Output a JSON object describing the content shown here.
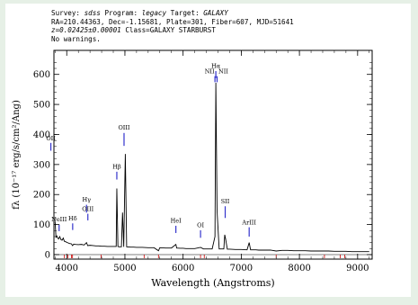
{
  "header": {
    "line1": {
      "survey_label": "Survey:",
      "survey": "sdss",
      "program_label": "Program:",
      "program": "legacy",
      "target_label": "Target:",
      "target": "GALAXY"
    },
    "line2": "RA=210.44363, Dec=-1.15681, Plate=301, Fiber=607, MJD=51641",
    "line3": {
      "redshift": "z=0.02425±0.00001",
      "class": "Class=GALAXY STARBURST"
    },
    "line4": "No warnings."
  },
  "colors": {
    "frame_background": "#e6f0e6",
    "panel_background": "#ffffff",
    "spectrum": "#000000",
    "line_marker": "#3333cc",
    "sky_tick": "#cc0000"
  },
  "chart_data": {
    "type": "line",
    "xlabel": "Wavelength (Angstroms)",
    "ylabel": "fλ (10⁻¹⁷ erg/s/cm²/Ang)",
    "xlim": [
      3780,
      9250
    ],
    "ylim": [
      -15,
      680
    ],
    "xticks": [
      4000,
      5000,
      6000,
      7000,
      8000,
      9000
    ],
    "yticks": [
      0,
      100,
      200,
      300,
      400,
      500,
      600
    ],
    "grid": false,
    "series": [
      {
        "points": [
          [
            3800,
            110
          ],
          [
            3815,
            58
          ],
          [
            3830,
            62
          ],
          [
            3845,
            55
          ],
          [
            3860,
            52
          ],
          [
            3880,
            60
          ],
          [
            3900,
            50
          ],
          [
            3920,
            48
          ],
          [
            3940,
            55
          ],
          [
            3960,
            44
          ],
          [
            3990,
            42
          ],
          [
            4010,
            40
          ],
          [
            4050,
            37
          ],
          [
            4080,
            36
          ],
          [
            4100,
            30
          ],
          [
            4120,
            35
          ],
          [
            4150,
            34
          ],
          [
            4200,
            33
          ],
          [
            4250,
            34
          ],
          [
            4300,
            32
          ],
          [
            4340,
            40
          ],
          [
            4360,
            30
          ],
          [
            4400,
            31
          ],
          [
            4450,
            30
          ],
          [
            4500,
            29
          ],
          [
            4550,
            29
          ],
          [
            4600,
            28
          ],
          [
            4650,
            28
          ],
          [
            4700,
            27
          ],
          [
            4750,
            27
          ],
          [
            4800,
            27
          ],
          [
            4850,
            27
          ],
          [
            4861,
            220
          ],
          [
            4880,
            27
          ],
          [
            4900,
            26
          ],
          [
            4940,
            26
          ],
          [
            4959,
            140
          ],
          [
            4980,
            26
          ],
          [
            5007,
            335
          ],
          [
            5030,
            26
          ],
          [
            5100,
            25
          ],
          [
            5150,
            25
          ],
          [
            5200,
            24
          ],
          [
            5300,
            24
          ],
          [
            5400,
            23
          ],
          [
            5500,
            23
          ],
          [
            5577,
            13
          ],
          [
            5600,
            23
          ],
          [
            5700,
            22
          ],
          [
            5800,
            22
          ],
          [
            5876,
            34
          ],
          [
            5890,
            22
          ],
          [
            5950,
            21
          ],
          [
            6000,
            21
          ],
          [
            6050,
            20
          ],
          [
            6150,
            20
          ],
          [
            6200,
            20
          ],
          [
            6300,
            24
          ],
          [
            6350,
            19
          ],
          [
            6400,
            19
          ],
          [
            6500,
            19
          ],
          [
            6548,
            60
          ],
          [
            6563,
            572
          ],
          [
            6584,
            145
          ],
          [
            6620,
            19
          ],
          [
            6700,
            19
          ],
          [
            6716,
            66
          ],
          [
            6731,
            52
          ],
          [
            6760,
            18
          ],
          [
            6800,
            18
          ],
          [
            6900,
            17
          ],
          [
            7000,
            17
          ],
          [
            7100,
            16
          ],
          [
            7136,
            40
          ],
          [
            7160,
            16
          ],
          [
            7250,
            16
          ],
          [
            7300,
            15
          ],
          [
            7400,
            15
          ],
          [
            7500,
            15
          ],
          [
            7600,
            12
          ],
          [
            7700,
            14
          ],
          [
            7800,
            14
          ],
          [
            7900,
            13
          ],
          [
            8000,
            13
          ],
          [
            8100,
            13
          ],
          [
            8200,
            12
          ],
          [
            8300,
            12
          ],
          [
            8400,
            12
          ],
          [
            8500,
            12
          ],
          [
            8600,
            11
          ],
          [
            8700,
            11
          ],
          [
            8800,
            11
          ],
          [
            8900,
            10
          ],
          [
            9000,
            10
          ],
          [
            9100,
            10
          ],
          [
            9200,
            10
          ]
        ]
      }
    ],
    "emission_lines": [
      {
        "label": "OII",
        "wavelength": 3727,
        "label_y": 375,
        "marker_top": 372,
        "marker_bottom": 346
      },
      {
        "label": "NeIII",
        "wavelength": 3869,
        "label_y": 105,
        "marker_top": 100,
        "marker_bottom": 78
      },
      {
        "label": "Hδ",
        "wavelength": 4102,
        "label_y": 108,
        "marker_top": 104,
        "marker_bottom": 82
      },
      {
        "label": "Hγ",
        "wavelength": 4340,
        "label_y": 170,
        "marker_top": 166,
        "marker_bottom": 140
      },
      {
        "label": "OIII",
        "wavelength": 4363,
        "label_y": 140,
        "marker_top": 136,
        "marker_bottom": 114
      },
      {
        "label": "Hβ",
        "wavelength": 4861,
        "label_y": 280,
        "marker_top": 276,
        "marker_bottom": 250
      },
      {
        "label": "OIII",
        "wavelength": 4985,
        "label_y": 410,
        "marker_top": 405,
        "marker_bottom": 362
      },
      {
        "label": "HeI",
        "wavelength": 5876,
        "label_y": 100,
        "marker_top": 96,
        "marker_bottom": 72
      },
      {
        "label": "OI",
        "wavelength": 6300,
        "label_y": 85,
        "marker_top": 81,
        "marker_bottom": 56
      },
      {
        "label": "Hα",
        "wavelength": 6563,
        "label_y": 615,
        "marker_top": 611,
        "marker_bottom": 588
      },
      {
        "label": "NII",
        "wavelength": 6548,
        "label_y": 598,
        "marker_top": 594,
        "marker_bottom": 574
      },
      {
        "label": "NII",
        "wavelength": 6584,
        "label_y": 598,
        "marker_top": 594,
        "marker_bottom": 574
      },
      {
        "label": "SII",
        "wavelength": 6724,
        "label_y": 165,
        "marker_top": 161,
        "marker_bottom": 122
      },
      {
        "label": "ArIII",
        "wavelength": 7136,
        "label_y": 95,
        "marker_top": 91,
        "marker_bottom": 60
      }
    ],
    "sky_ticks": [
      3960,
      4020,
      4080,
      4100,
      4590,
      5330,
      5577,
      6300,
      6364,
      7600,
      8430,
      8700,
      8780
    ]
  }
}
